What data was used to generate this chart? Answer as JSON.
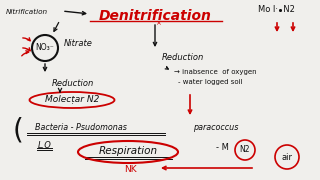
{
  "bg_color": "#e8e8e8",
  "red": "#cc0000",
  "black": "#111111",
  "title": "Denitrification",
  "mol_n2": "Mo l·  N2",
  "nitrification": "Nitrification",
  "nitrate": "Nitrate",
  "no3": "NO₃⁻",
  "reduction_l": "Reduction",
  "reduction_r": "Reduction",
  "molecular_n2": "Molecṭar N2",
  "inabsence": "→ inabsence  of oxygen",
  "waterlogged": "- water logged soil",
  "bacteria": "Bacteria - Psudomonas",
  "paracoccus": "paracoccus",
  "lo": "L.O",
  "respiration": "Respiration",
  "nk": "NK",
  "minus_m": "- M",
  "n2": "N2",
  "air": "air"
}
